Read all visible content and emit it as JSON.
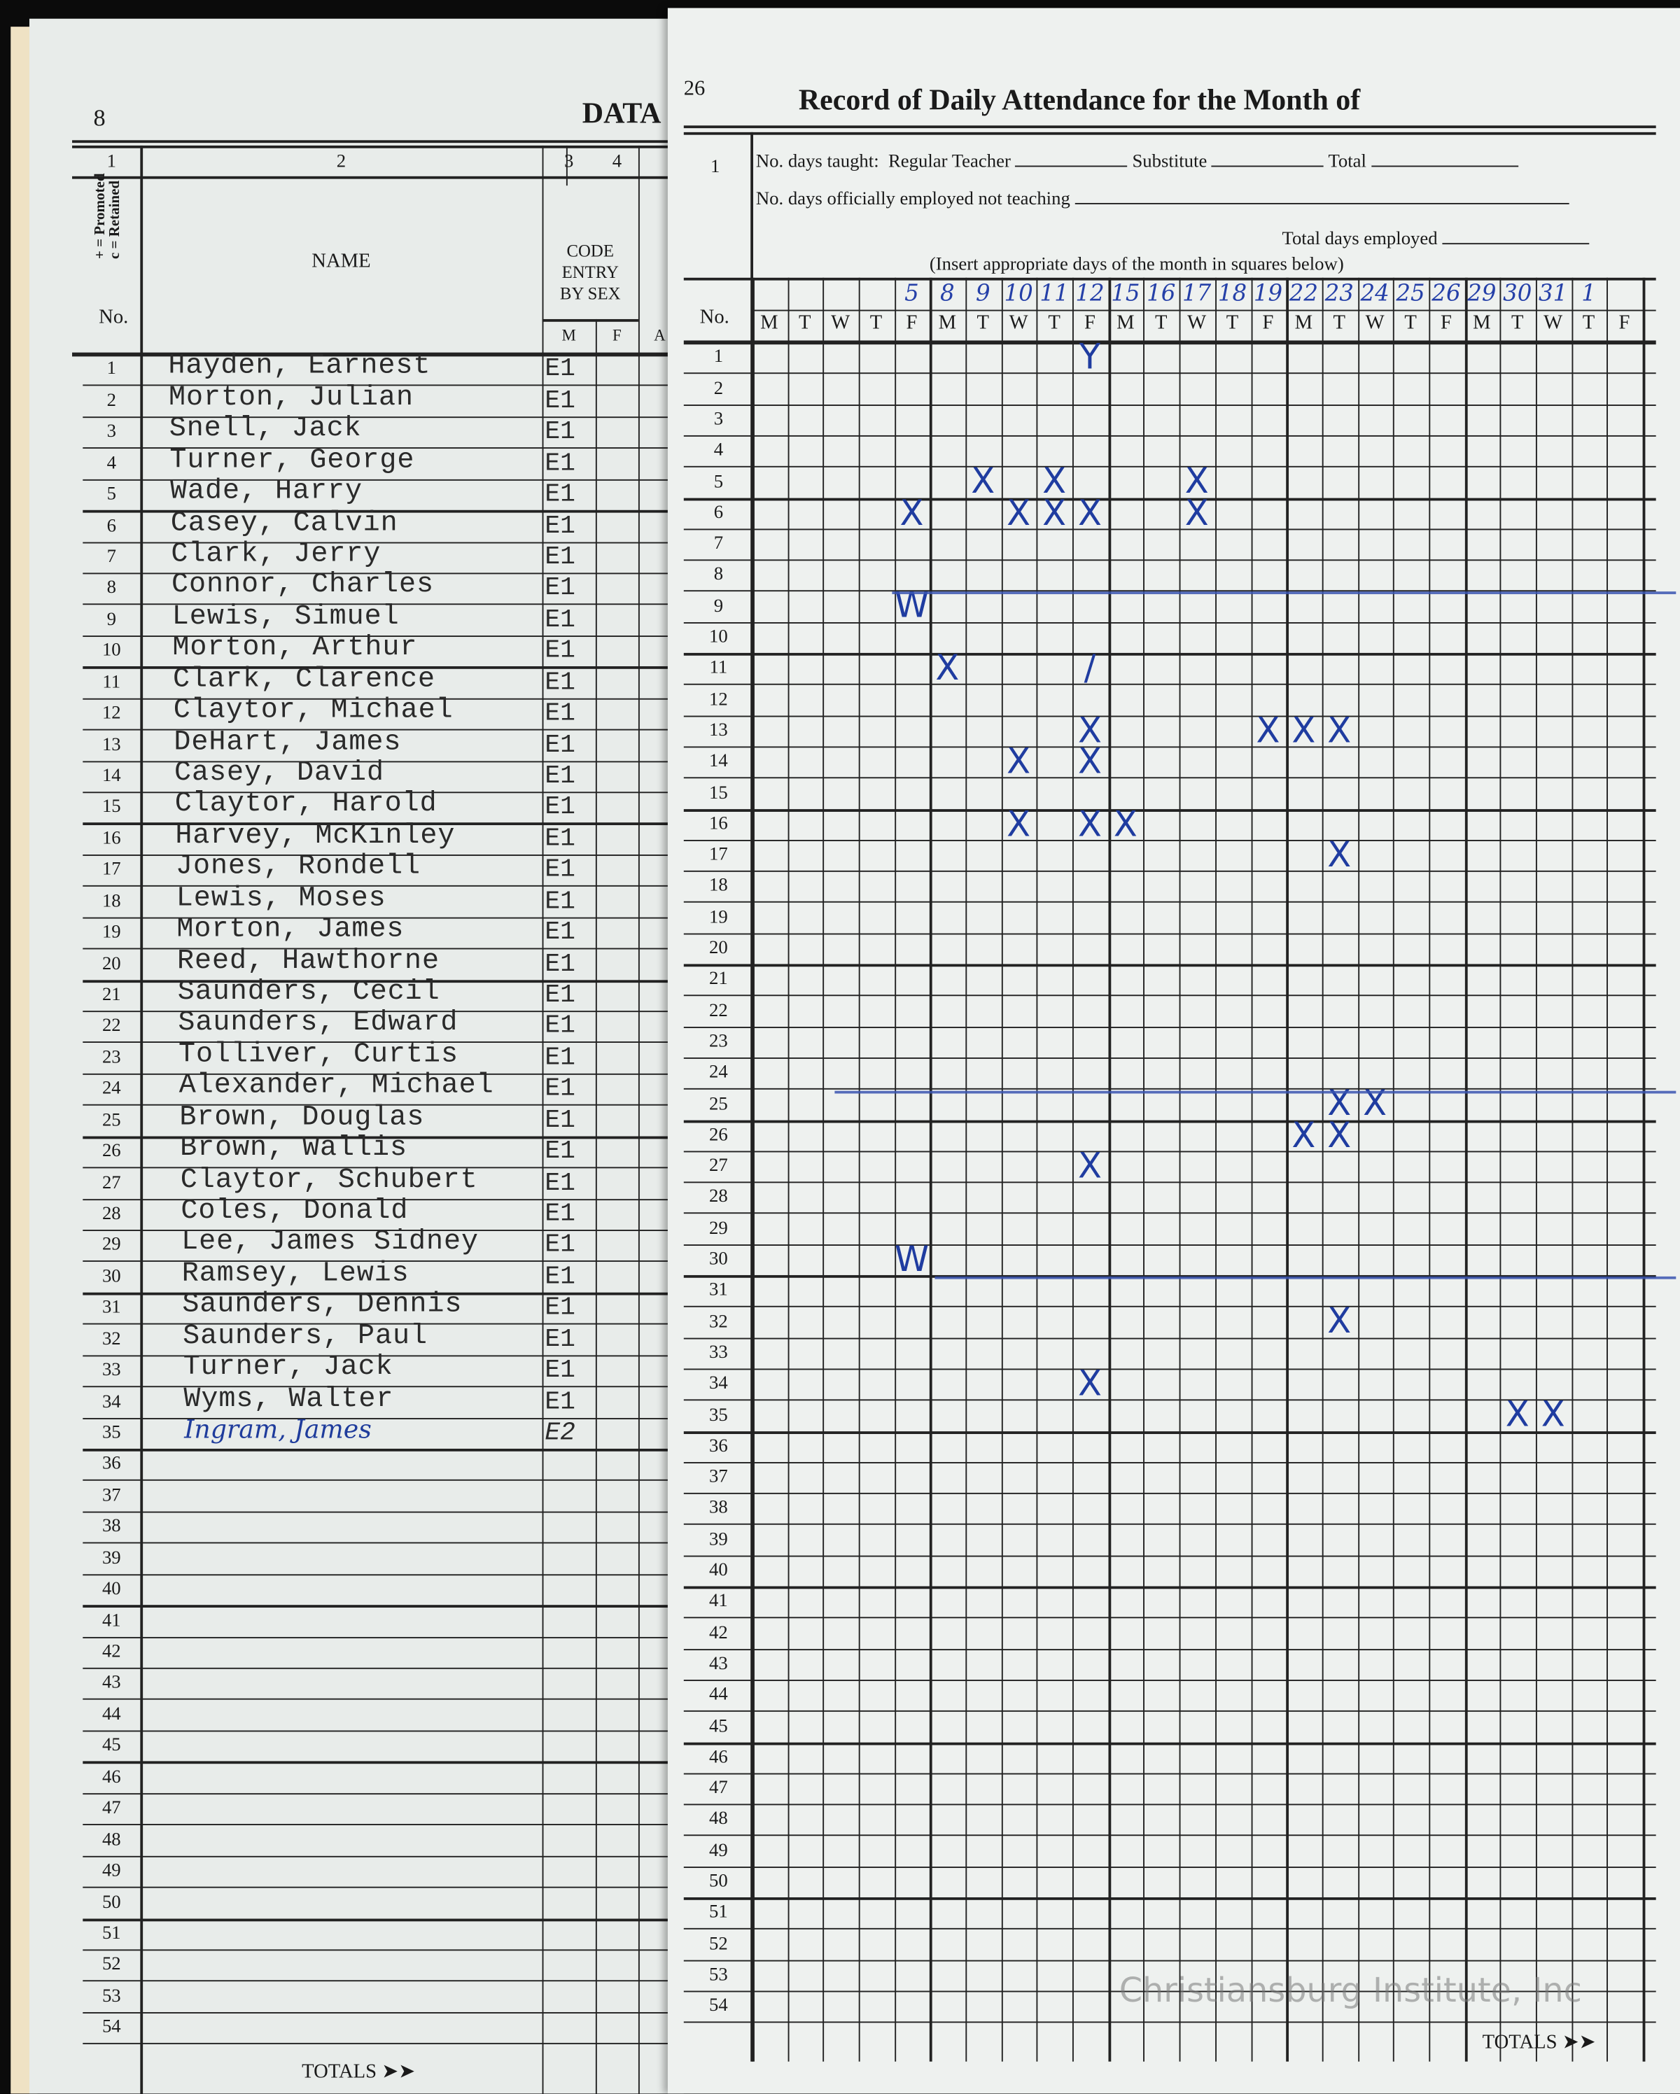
{
  "left_page": {
    "page_number": "8",
    "title_fragment": "DATA",
    "col_numbers": [
      "1",
      "2",
      "3",
      "4"
    ],
    "promoted_legend": "+ = Promoted",
    "retained_legend": "c = Retained",
    "no_label": "No.",
    "name_header": "NAME",
    "code_header": [
      "CODE",
      "ENTRY",
      "BY SEX"
    ],
    "sex_m": "M",
    "sex_f": "F",
    "next_col_fragment": "A",
    "totals_label": "TOTALS",
    "students": [
      {
        "name": "Hayden, Earnest",
        "code": "E1"
      },
      {
        "name": "Morton, Julian",
        "code": "E1"
      },
      {
        "name": "Snell, Jack",
        "code": "E1"
      },
      {
        "name": "Turner, George",
        "code": "E1"
      },
      {
        "name": "Wade, Harry",
        "code": "E1"
      },
      {
        "name": "Casey, Calvin",
        "code": "E1"
      },
      {
        "name": "Clark, Jerry",
        "code": "E1"
      },
      {
        "name": "Connor, Charles",
        "code": "E1"
      },
      {
        "name": "Lewis, Simuel",
        "code": "E1"
      },
      {
        "name": "Morton, Arthur",
        "code": "E1"
      },
      {
        "name": "Clark, Clarence",
        "code": "E1"
      },
      {
        "name": "Claytor, Michael",
        "code": "E1"
      },
      {
        "name": "DeHart, James",
        "code": "E1"
      },
      {
        "name": "Casey, David",
        "code": "E1"
      },
      {
        "name": "Claytor, Harold",
        "code": "E1"
      },
      {
        "name": "Harvey, McKinley",
        "code": "E1"
      },
      {
        "name": "Jones, Rondell",
        "code": "E1"
      },
      {
        "name": "Lewis, Moses",
        "code": "E1"
      },
      {
        "name": "Morton, James",
        "code": "E1"
      },
      {
        "name": "Reed, Hawthorne",
        "code": "E1"
      },
      {
        "name": "Saunders, Cecil",
        "code": "E1"
      },
      {
        "name": "Saunders, Edward",
        "code": "E1"
      },
      {
        "name": "Tolliver, Curtis",
        "code": "E1"
      },
      {
        "name": "Alexander, Michael",
        "code": "E1"
      },
      {
        "name": "Brown, Douglas",
        "code": "E1"
      },
      {
        "name": "Brown, Wallis",
        "code": "E1"
      },
      {
        "name": "Claytor, Schubert",
        "code": "E1"
      },
      {
        "name": "Coles, Donald",
        "code": "E1"
      },
      {
        "name": "Lee, James Sidney",
        "code": "E1"
      },
      {
        "name": "Ramsey, Lewis",
        "code": "E1"
      },
      {
        "name": "Saunders, Dennis",
        "code": "E1"
      },
      {
        "name": "Saunders, Paul",
        "code": "E1"
      },
      {
        "name": "Turner, Jack",
        "code": "E1"
      },
      {
        "name": "Wyms, Walter",
        "code": "E1"
      },
      {
        "name": "Ingram, James",
        "code": "E2",
        "handwritten": true
      }
    ],
    "row_count": 54
  },
  "right_page": {
    "page_number": "26",
    "title": "Record of Daily Attendance for the Month of",
    "line1_no": "1",
    "days_taught_label": "No. days taught:",
    "regular_teacher_label": "Regular Teacher",
    "substitute_label": "Substitute",
    "total_label": "Total",
    "not_teaching_label": "No. days officially employed not teaching",
    "total_days_employed_label": "Total days employed",
    "insert_note": "(Insert appropriate days of the month in squares below)",
    "no_label": "No.",
    "weekdays": [
      "M",
      "T",
      "W",
      "T",
      "F",
      "M",
      "T",
      "W",
      "T",
      "F",
      "M",
      "T",
      "W",
      "T",
      "F",
      "M",
      "T",
      "W",
      "T",
      "F",
      "M",
      "T",
      "W",
      "T",
      "F"
    ],
    "dates": [
      "",
      "",
      "",
      "",
      "5",
      "8",
      "9",
      "10",
      "11",
      "12",
      "15",
      "16",
      "17",
      "18",
      "19",
      "22",
      "23",
      "24",
      "25",
      "26",
      "29",
      "30",
      "31",
      "1",
      ""
    ],
    "row_count": 54,
    "marks": [
      {
        "row": 1,
        "date": "12",
        "symbol": "Y"
      },
      {
        "row": 5,
        "date": "9",
        "symbol": "X"
      },
      {
        "row": 5,
        "date": "11",
        "symbol": "X"
      },
      {
        "row": 5,
        "date": "17",
        "symbol": "X"
      },
      {
        "row": 6,
        "date": "5",
        "symbol": "X"
      },
      {
        "row": 6,
        "date": "10",
        "symbol": "X"
      },
      {
        "row": 6,
        "date": "11",
        "symbol": "X"
      },
      {
        "row": 6,
        "date": "12",
        "symbol": "X"
      },
      {
        "row": 6,
        "date": "17",
        "symbol": "X"
      },
      {
        "row": 9,
        "date": "5",
        "symbol": "W"
      },
      {
        "row": 11,
        "date": "8",
        "symbol": "X"
      },
      {
        "row": 11,
        "date": "12",
        "symbol": "/"
      },
      {
        "row": 13,
        "date": "12",
        "symbol": "X"
      },
      {
        "row": 13,
        "date": "19",
        "symbol": "X"
      },
      {
        "row": 13,
        "date": "22",
        "symbol": "X"
      },
      {
        "row": 13,
        "date": "23",
        "symbol": "X"
      },
      {
        "row": 14,
        "date": "10",
        "symbol": "X"
      },
      {
        "row": 14,
        "date": "12",
        "symbol": "X"
      },
      {
        "row": 16,
        "date": "10",
        "symbol": "X"
      },
      {
        "row": 16,
        "date": "12",
        "symbol": "X"
      },
      {
        "row": 16,
        "date": "15",
        "symbol": "X"
      },
      {
        "row": 17,
        "date": "23",
        "symbol": "X"
      },
      {
        "row": 25,
        "date": "23",
        "symbol": "X"
      },
      {
        "row": 25,
        "date": "24",
        "symbol": "X"
      },
      {
        "row": 26,
        "date": "22",
        "symbol": "X"
      },
      {
        "row": 26,
        "date": "23",
        "symbol": "X"
      },
      {
        "row": 27,
        "date": "12",
        "symbol": "X"
      },
      {
        "row": 30,
        "date": "5",
        "symbol": "W"
      },
      {
        "row": 32,
        "date": "23",
        "symbol": "X"
      },
      {
        "row": 34,
        "date": "12",
        "symbol": "X"
      },
      {
        "row": 35,
        "date": "30",
        "symbol": "X"
      },
      {
        "row": 35,
        "date": "31",
        "symbol": "X"
      }
    ],
    "strike_rows": [
      8,
      24,
      30
    ],
    "totals_label": "TOTALS",
    "ink_color": "#1f3ca0"
  },
  "watermark": "Christiansburg Institute, Inc"
}
